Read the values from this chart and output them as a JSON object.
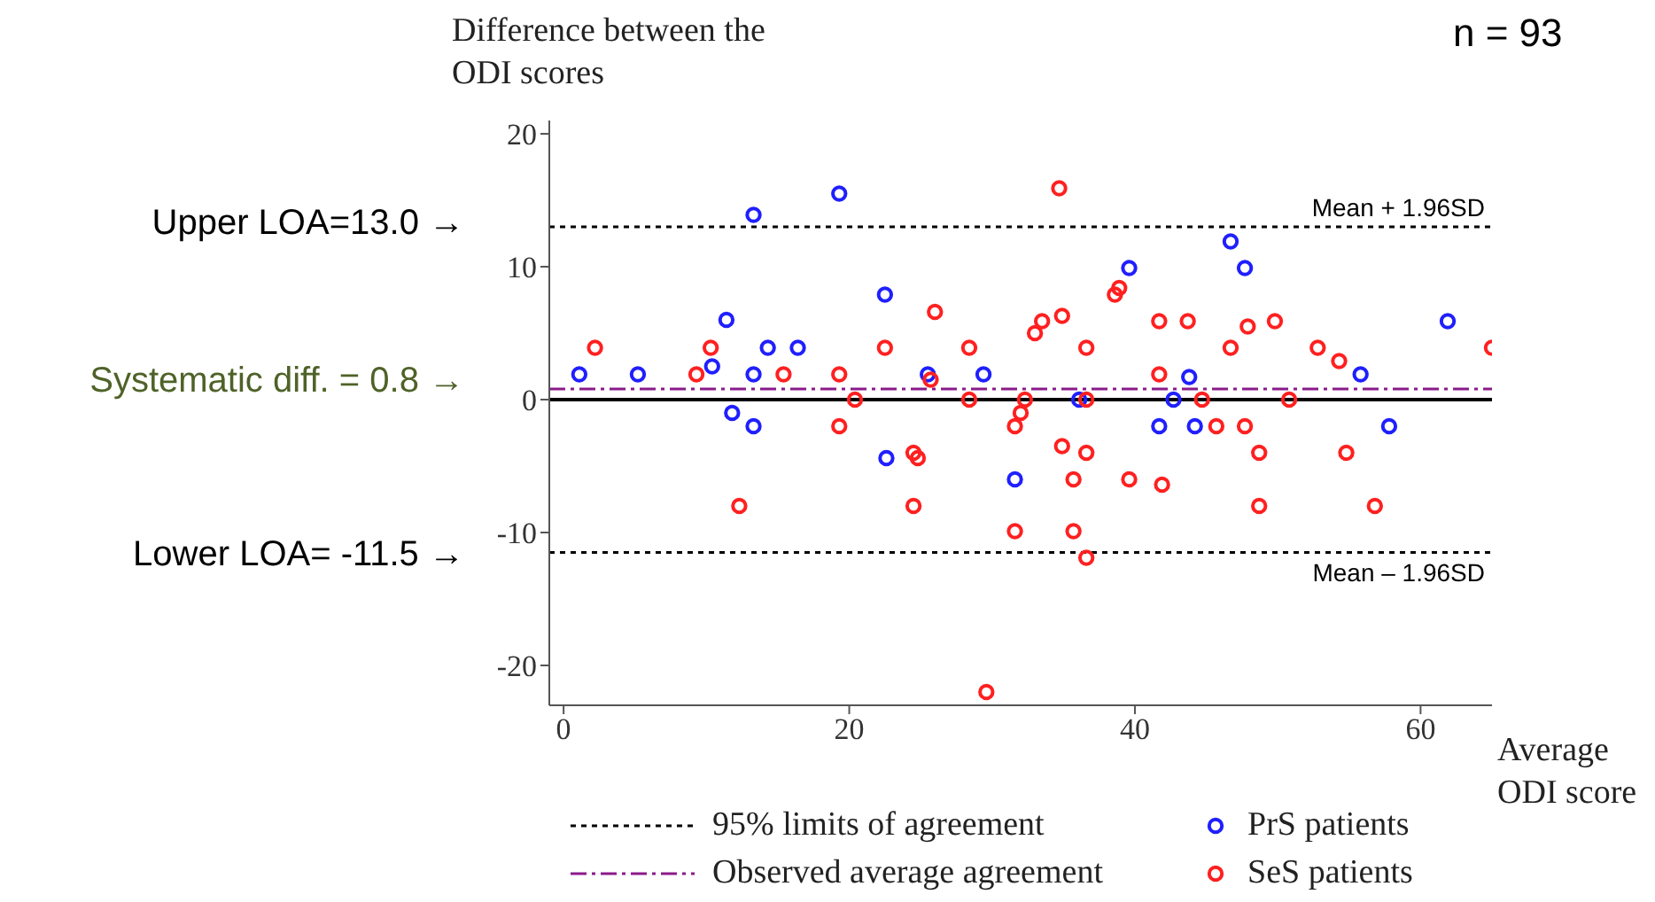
{
  "chart_data": {
    "type": "scatter",
    "ylabel": "Difference between the ODI scores",
    "xlabel": "Average ODI score",
    "xlim": [
      -1,
      65
    ],
    "xticks": [
      0,
      20,
      40,
      60
    ],
    "ylim": [
      -23,
      21
    ],
    "yticks": [
      -20,
      -10,
      0,
      10,
      20
    ],
    "grid": false,
    "legend": "bottom",
    "marker": "circle",
    "series": [
      {
        "name": "PrS patients",
        "color": "#1f1fff",
        "x": [
          1.1,
          5.2,
          10.4,
          11.4,
          11.8,
          13.3,
          13.3,
          13.3,
          14.3,
          16.4,
          19.3,
          22.5,
          22.6,
          25.5,
          29.4,
          31.6,
          36.1,
          39.6,
          41.7,
          43.8,
          42.7,
          44.2,
          46.7,
          47.7,
          55.8,
          57.8,
          61.9
        ],
        "values": [
          1.9,
          1.9,
          2.5,
          6.0,
          -1.0,
          13.9,
          1.9,
          -2.0,
          3.9,
          3.9,
          15.5,
          7.9,
          -4.4,
          1.9,
          1.9,
          -6.0,
          0,
          9.9,
          -2.0,
          1.7,
          0,
          -2.0,
          11.9,
          9.9,
          1.9,
          -2.0,
          5.9
        ]
      },
      {
        "name": "SeS patients",
        "color": "#ff2020",
        "x": [
          2.2,
          9.3,
          10.3,
          15.4,
          12.3,
          19.3,
          19.3,
          20.4,
          22.5,
          24.5,
          24.8,
          24.5,
          26.0,
          25.7,
          28.4,
          28.4,
          29.6,
          31.6,
          31.6,
          32.0,
          32.3,
          34.7,
          33.0,
          33.5,
          34.9,
          34.9,
          35.7,
          35.7,
          36.6,
          36.6,
          36.6,
          36.6,
          38.6,
          38.9,
          39.6,
          41.7,
          41.7,
          41.9,
          43.7,
          44.7,
          45.7,
          46.7,
          47.7,
          47.9,
          48.7,
          48.7,
          49.8,
          50.8,
          52.8,
          54.3,
          54.8,
          56.8,
          65.0
        ],
        "values": [
          3.9,
          1.9,
          3.9,
          1.9,
          -8.0,
          1.9,
          -2.0,
          0,
          3.9,
          -4.0,
          -4.4,
          -8.0,
          6.6,
          1.5,
          3.9,
          0,
          -22.0,
          -2.0,
          -9.9,
          -1.0,
          0,
          15.9,
          5.0,
          5.9,
          6.3,
          -3.5,
          -6.0,
          -9.9,
          3.9,
          0,
          -4.0,
          -11.9,
          7.9,
          8.4,
          -6.0,
          5.9,
          1.9,
          -6.4,
          5.9,
          0,
          -2.0,
          3.9,
          -2.0,
          5.5,
          -4.0,
          -8.0,
          5.9,
          0,
          3.9,
          2.9,
          -4.0,
          -8.0,
          3.9
        ]
      }
    ],
    "ref_lines": [
      {
        "axis": "y",
        "value": 13.0,
        "label": "Mean + 1.96SD",
        "color": "#000000",
        "line_style": "dotted"
      },
      {
        "axis": "y",
        "value": -11.5,
        "label": "Mean – 1.96SD",
        "color": "#000000",
        "line_style": "dotted"
      },
      {
        "axis": "y",
        "value": 0.8,
        "color": "#8b1a8b",
        "line_style": "dashed"
      },
      {
        "axis": "y",
        "value": 0,
        "color": "#000000",
        "line_style": "solid"
      }
    ],
    "annotations": [
      "95% limits of agreement",
      "Observed average agreement",
      "Upper LOA=13.0 →",
      "Systematic diff. = 0.8 →",
      "Lower LOA= -11.5 →",
      "n = 93"
    ]
  }
}
